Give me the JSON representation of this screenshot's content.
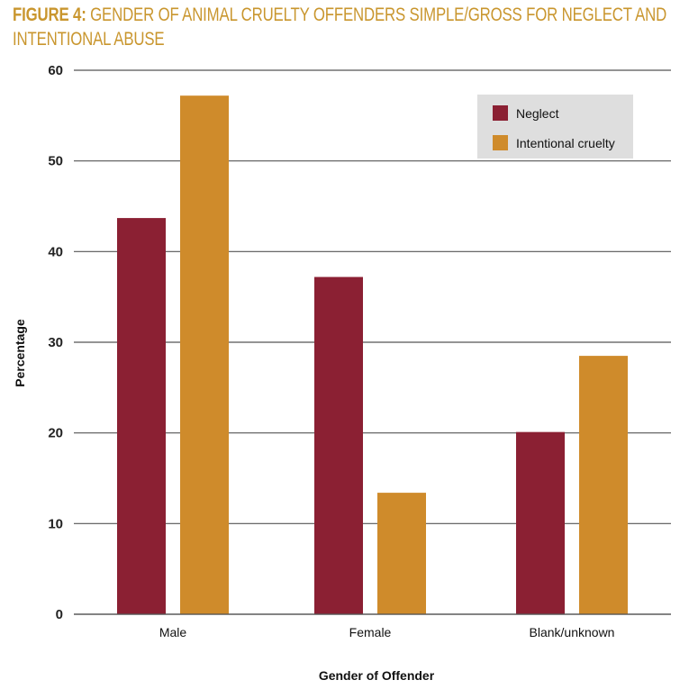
{
  "title": {
    "lead": "FIGURE 4:",
    "text": " GENDER OF ANIMAL CRUELTY OFFENDERS SIMPLE/GROSS FOR NEGLECT AND INTENTIONAL ABUSE"
  },
  "colors": {
    "title": "#C9962E",
    "neglect": "#8B2033",
    "intentional": "#CF8B2B",
    "legend_bg": "#DEDEDE",
    "gridline": "#555555"
  },
  "chart_data": {
    "type": "bar",
    "title": "FIGURE 4: GENDER OF ANIMAL CRUELTY OFFENDERS SIMPLE/GROSS FOR NEGLECT AND INTENTIONAL ABUSE",
    "xlabel": "Gender of Offender",
    "ylabel": "Percentage",
    "categories": [
      "Male",
      "Female",
      "Blank/unknown"
    ],
    "series": [
      {
        "name": "Neglect",
        "color": "#8B2033",
        "values": [
          43.7,
          37.2,
          20.1
        ]
      },
      {
        "name": "Intentional cruelty",
        "color": "#CF8B2B",
        "values": [
          57.2,
          13.4,
          28.5
        ]
      }
    ],
    "ylim": [
      0,
      60
    ],
    "yticks": [
      0,
      10,
      20,
      30,
      40,
      50,
      60
    ],
    "grid": true,
    "legend_position": "top-right"
  }
}
